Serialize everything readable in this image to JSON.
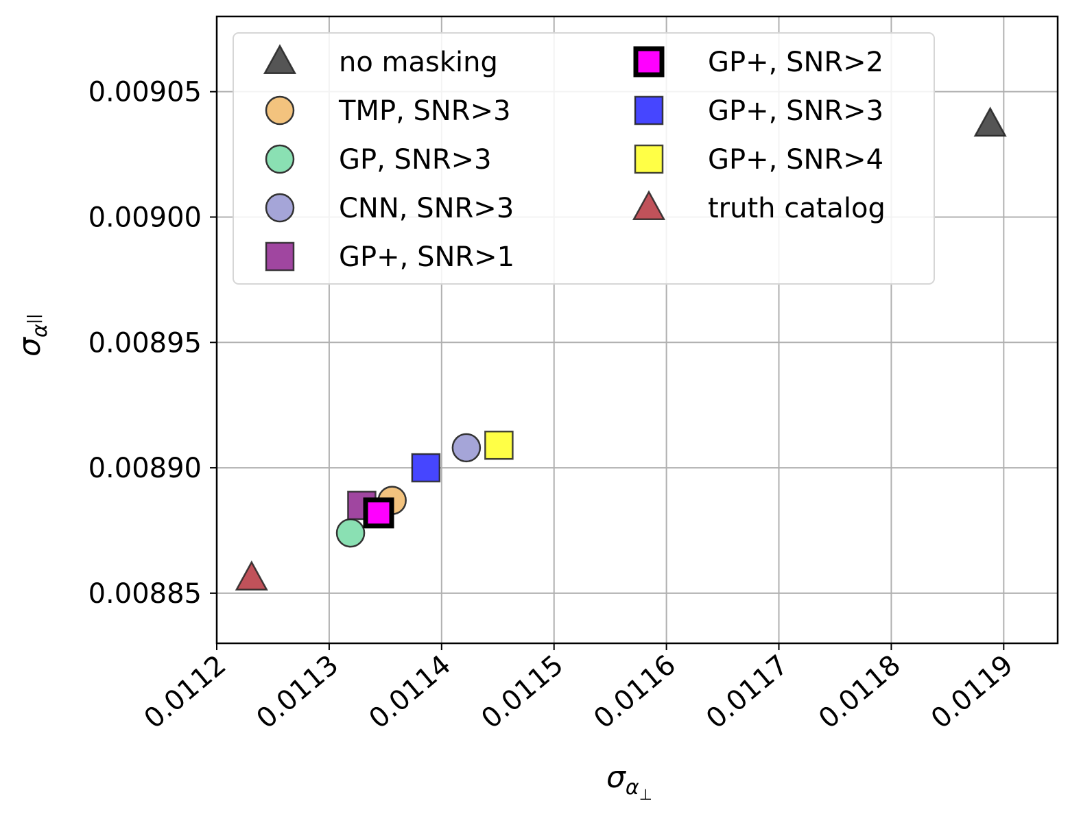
{
  "chart_data": {
    "type": "scatter",
    "title": "",
    "xlabel": {
      "symbol": "σ",
      "subscript": "α",
      "subsub": "⊥"
    },
    "ylabel": {
      "symbol": "σ",
      "subscript": "α",
      "subsub": "||"
    },
    "xlim": [
      0.0112,
      0.011948
    ],
    "ylim": [
      0.00883,
      0.00908
    ],
    "xticks": [
      "0.0112",
      "0.0113",
      "0.0114",
      "0.0115",
      "0.0116",
      "0.0117",
      "0.0118",
      "0.0119"
    ],
    "xtick_values": [
      0.0112,
      0.0113,
      0.0114,
      0.0115,
      0.0116,
      0.0117,
      0.0118,
      0.0119
    ],
    "yticks": [
      "0.00885",
      "0.00890",
      "0.00895",
      "0.00900",
      "0.00905"
    ],
    "ytick_values": [
      0.00885,
      0.0089,
      0.00895,
      0.009,
      0.00905
    ],
    "grid": true,
    "legend": {
      "placement": "upper-left",
      "columns": 2
    },
    "series": [
      {
        "name": "no masking",
        "marker": "triangle",
        "color": "#555555",
        "x": 0.011888,
        "y": 0.009037
      },
      {
        "name": "TMP, SNR>3",
        "marker": "circle",
        "color": "#f3c37e",
        "x": 0.011356,
        "y": 0.008887
      },
      {
        "name": "GP, SNR>3",
        "marker": "circle",
        "color": "#8ae0b3",
        "x": 0.011319,
        "y": 0.008874
      },
      {
        "name": "CNN, SNR>3",
        "marker": "circle",
        "color": "#a5a5d8",
        "x": 0.011422,
        "y": 0.008908
      },
      {
        "name": "GP+, SNR>1",
        "marker": "square",
        "color": "#a046a0",
        "x": 0.011329,
        "y": 0.008885
      },
      {
        "name": "GP+, SNR>2",
        "marker": "square-bold",
        "color": "#ff00ff",
        "x": 0.011344,
        "y": 0.008882
      },
      {
        "name": "GP+, SNR>3",
        "marker": "square",
        "color": "#4646ff",
        "x": 0.011386,
        "y": 0.0089
      },
      {
        "name": "GP+, SNR>4",
        "marker": "square",
        "color": "#ffff46",
        "x": 0.011451,
        "y": 0.008909
      },
      {
        "name": "truth catalog",
        "marker": "triangle",
        "color": "#c0525a",
        "x": 0.011231,
        "y": 0.008856
      }
    ]
  }
}
